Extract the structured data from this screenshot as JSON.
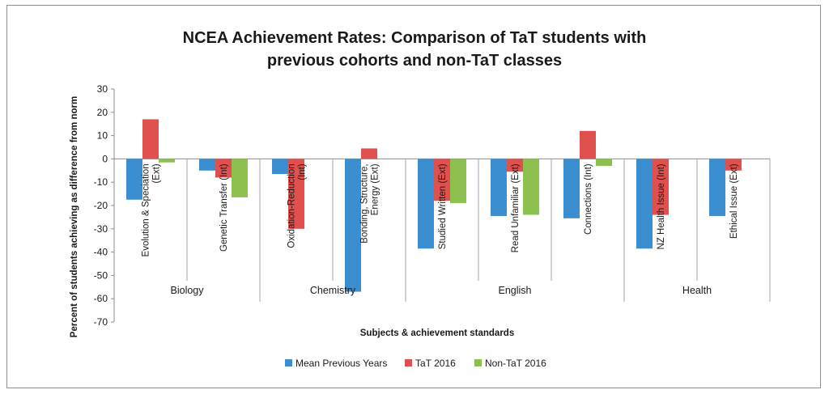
{
  "chart_data": {
    "type": "bar",
    "title": "NCEA Achievement Rates: Comparison of TaT students with previous cohorts and non-TaT classes",
    "title_lines": [
      "NCEA Achievement Rates: Comparison of TaT students with",
      "previous cohorts and non-TaT classes"
    ],
    "xlabel": "Subjects & achievement standards",
    "ylabel": "Percent of students achieving as difference from norm",
    "ylim": [
      -70,
      30
    ],
    "yticks": [
      30,
      20,
      10,
      0,
      -10,
      -20,
      -30,
      -40,
      -50,
      -60,
      -70
    ],
    "grid": false,
    "legend_position": "bottom",
    "categories": [
      {
        "label_lines": [
          "Evolution & Speciation",
          "(Ext)"
        ],
        "group": "Biology"
      },
      {
        "label_lines": [
          "Genetic Transfer (Int)"
        ],
        "group": "Biology"
      },
      {
        "label_lines": [
          "Oxidation-Reduction",
          "(Int)"
        ],
        "group": "Chemistry"
      },
      {
        "label_lines": [
          "Bonding, Structure,",
          "Energy (Ext)"
        ],
        "group": "Chemistry"
      },
      {
        "label_lines": [
          "Studied Written (Ext)"
        ],
        "group": "English"
      },
      {
        "label_lines": [
          "Read Unfamiliar (Ext)"
        ],
        "group": "English"
      },
      {
        "label_lines": [
          "Connections (Int)"
        ],
        "group": "English"
      },
      {
        "label_lines": [
          "NZ Health Issue (Int)"
        ],
        "group": "Health"
      },
      {
        "label_lines": [
          "Ethical Issue (Ext)"
        ],
        "group": "Health"
      }
    ],
    "groups": [
      {
        "name": "Biology",
        "count": 2
      },
      {
        "name": "Chemistry",
        "count": 2
      },
      {
        "name": "English",
        "count": 3
      },
      {
        "name": "Health",
        "count": 2
      }
    ],
    "series": [
      {
        "name": "Mean Previous Years",
        "color": "#3b8ed0",
        "values": [
          -17.5,
          -5,
          -6.5,
          -57,
          -38.5,
          -24.5,
          -25.5,
          -38.5,
          -24.5
        ]
      },
      {
        "name": "TaT 2016",
        "color": "#e0504f",
        "values": [
          17,
          -8,
          -30,
          4.5,
          -18,
          -5.5,
          12,
          -24,
          -5
        ]
      },
      {
        "name": "Non-TaT 2016",
        "color": "#8dc04f",
        "values": [
          -1.5,
          -16.5,
          0,
          0,
          -19,
          -24,
          -3,
          0,
          0
        ]
      }
    ]
  }
}
